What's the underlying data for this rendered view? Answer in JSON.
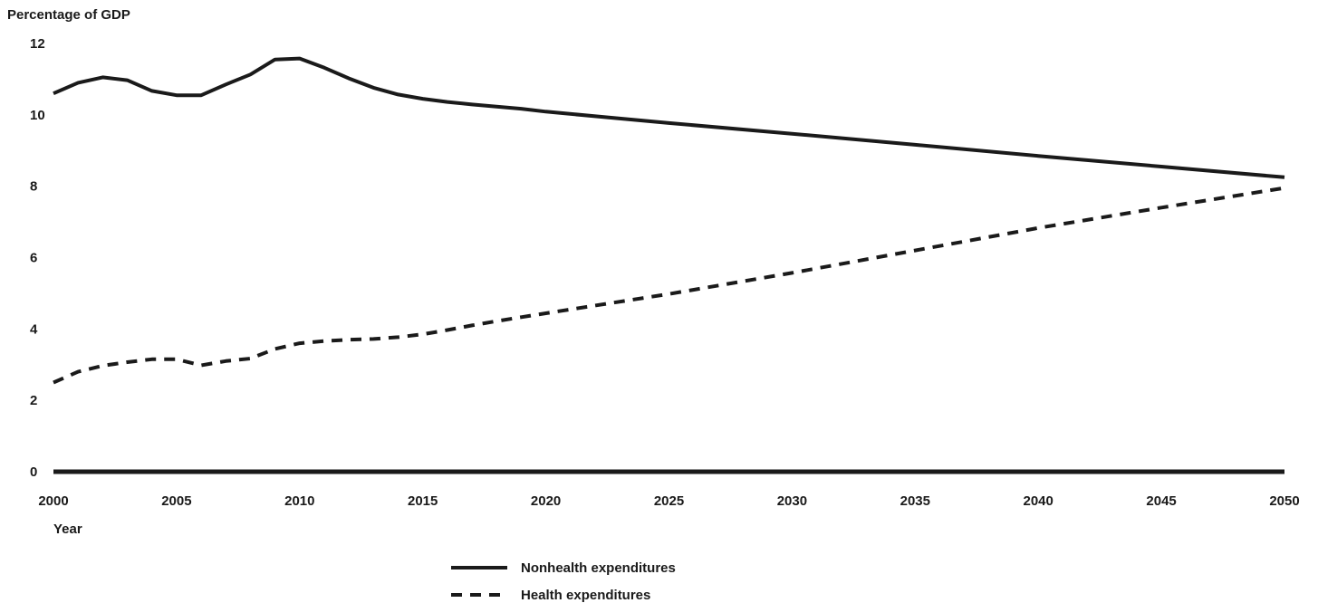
{
  "chart_data": {
    "type": "line",
    "title": "",
    "ylabel": "Percentage of GDP",
    "xlabel": "Year",
    "ylim": [
      0,
      12
    ],
    "xlim": [
      2000,
      2050
    ],
    "yticks": [
      "0",
      "2",
      "4",
      "6",
      "8",
      "10",
      "12"
    ],
    "xticks": [
      "2000",
      "2005",
      "2010",
      "2015",
      "2020",
      "2025",
      "2030",
      "2035",
      "2040",
      "2045",
      "2050"
    ],
    "grid": false,
    "legend": "bottom-center",
    "series": [
      {
        "name": "Nonhealth expenditures",
        "style": "solid",
        "color": "#1a1a1a",
        "x": [
          2000,
          2001,
          2002,
          2003,
          2004,
          2005,
          2006,
          2007,
          2008,
          2009,
          2010,
          2011,
          2012,
          2013,
          2014,
          2015,
          2016,
          2017,
          2018,
          2019,
          2020,
          2025,
          2030,
          2035,
          2040,
          2045,
          2050
        ],
        "y": [
          10.6,
          10.9,
          11.05,
          10.97,
          10.67,
          10.55,
          10.55,
          10.85,
          11.13,
          11.55,
          11.58,
          11.32,
          11.02,
          10.76,
          10.57,
          10.45,
          10.36,
          10.29,
          10.23,
          10.17,
          10.09,
          9.77,
          9.47,
          9.16,
          8.85,
          8.55,
          8.25
        ]
      },
      {
        "name": "Health expenditures",
        "style": "dashed",
        "color": "#1a1a1a",
        "x": [
          2000,
          2001,
          2002,
          2003,
          2004,
          2005,
          2006,
          2007,
          2008,
          2009,
          2010,
          2011,
          2012,
          2013,
          2014,
          2015,
          2016,
          2017,
          2018,
          2019,
          2020,
          2025,
          2030,
          2035,
          2040,
          2045,
          2050
        ],
        "y": [
          2.5,
          2.8,
          2.97,
          3.07,
          3.15,
          3.15,
          2.98,
          3.1,
          3.17,
          3.44,
          3.6,
          3.66,
          3.7,
          3.72,
          3.77,
          3.85,
          3.97,
          4.1,
          4.22,
          4.33,
          4.44,
          4.98,
          5.57,
          6.2,
          6.83,
          7.4,
          7.95
        ]
      }
    ]
  }
}
